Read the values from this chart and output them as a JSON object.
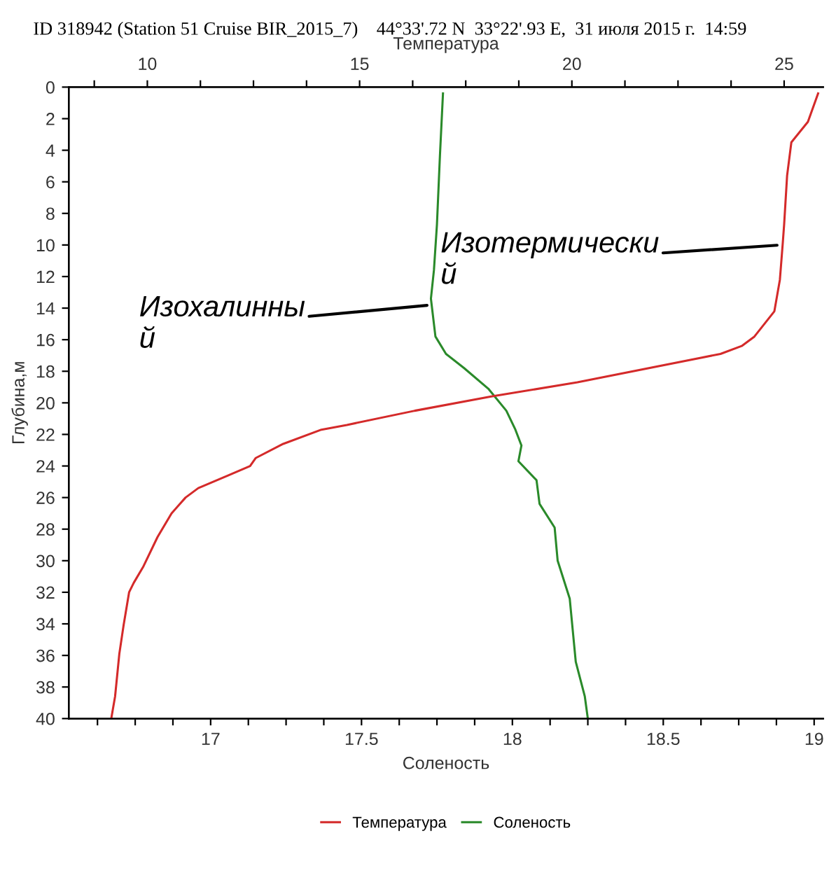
{
  "chart_data": {
    "type": "line",
    "title": "ID 318942 (Station 51 Cruise BIR_2015_7)    44°33'.72 N  33°22'.93 E,  31 июля 2015 г.  14:59",
    "xlabel": "Соленость",
    "x2label": "Температура",
    "ylabel": "Глубина,м",
    "xlim": [
      16.53,
      19.03
    ],
    "xticks": [
      {
        "value": 16.625,
        "label": null
      },
      {
        "value": 16.75,
        "label": null
      },
      {
        "value": 16.875,
        "label": null
      },
      17,
      {
        "value": 17.125,
        "label": null
      },
      {
        "value": 17.25,
        "label": null
      },
      {
        "value": 17.375,
        "label": null
      },
      17.5,
      {
        "value": 17.625,
        "label": null
      },
      {
        "value": 17.75,
        "label": null
      },
      {
        "value": 17.875,
        "label": null
      },
      18,
      {
        "value": 18.125,
        "label": null
      },
      {
        "value": 18.25,
        "label": null
      },
      {
        "value": 18.375,
        "label": null
      },
      18.5,
      {
        "value": 18.625,
        "label": null
      },
      {
        "value": 18.75,
        "label": null
      },
      {
        "value": 18.875,
        "label": null
      },
      19
    ],
    "x2lim": [
      8.15,
      25.92
    ],
    "x2ticks": [
      {
        "value": 8.75,
        "label": null
      },
      10,
      {
        "value": 11.25,
        "label": null
      },
      {
        "value": 12.5,
        "label": null
      },
      {
        "value": 13.75,
        "label": null
      },
      15,
      {
        "value": 16.25,
        "label": null
      },
      {
        "value": 17.5,
        "label": null
      },
      {
        "value": 18.75,
        "label": null
      },
      20,
      {
        "value": 21.25,
        "label": null
      },
      {
        "value": 22.5,
        "label": null
      },
      {
        "value": 23.75,
        "label": null
      },
      25
    ],
    "ylim": [
      40,
      0
    ],
    "yticks": [
      0,
      2,
      4,
      6,
      8,
      10,
      12,
      14,
      16,
      18,
      20,
      22,
      24,
      26,
      28,
      30,
      32,
      34,
      36,
      38,
      40
    ],
    "grid": false,
    "legend": "bottom",
    "series": [
      {
        "name": "Температура",
        "color": "#d42a2a",
        "axis": "x2",
        "x": [
          25.8,
          25.56,
          25.17,
          25.07,
          25.0,
          24.97,
          24.9,
          24.77,
          24.3,
          24.0,
          23.5,
          20.13,
          18.1,
          16.3,
          14.7,
          14.1,
          13.2,
          12.55,
          12.42,
          11.9,
          11.2,
          10.9,
          10.57,
          10.24,
          9.9,
          9.68,
          9.57,
          9.44,
          9.34,
          9.24,
          9.15
        ],
        "values": [
          0.4,
          2.2,
          3.5,
          5.6,
          8.7,
          9.8,
          12.2,
          14.2,
          15.8,
          16.4,
          16.9,
          18.7,
          19.6,
          20.5,
          21.4,
          21.7,
          22.6,
          23.5,
          24.0,
          24.6,
          25.4,
          26.0,
          27.0,
          28.5,
          30.4,
          31.4,
          32.0,
          34.1,
          35.9,
          38.6,
          40.0
        ]
      },
      {
        "name": "Соленость",
        "color": "#2a8a2a",
        "x": [
          17.77,
          17.76,
          17.75,
          17.74,
          17.73,
          17.745,
          17.78,
          17.84,
          17.92,
          17.98,
          18.01,
          18.03,
          18.02,
          18.08,
          18.09,
          18.14,
          18.15,
          18.19,
          18.2,
          18.21,
          18.24,
          18.25
        ],
        "values": [
          0.4,
          4.3,
          8.7,
          11.6,
          13.4,
          15.8,
          16.9,
          17.8,
          19.1,
          20.5,
          21.7,
          22.7,
          23.7,
          24.9,
          26.4,
          27.9,
          30.0,
          32.4,
          34.4,
          36.4,
          38.6,
          40.0
        ]
      }
    ],
    "annotations": [
      {
        "text": "Изохалинны\nй",
        "x": 17.73,
        "y": 13.8
      },
      {
        "text": "Изотермически\nй",
        "x": 18.89,
        "y": 10.0
      }
    ]
  }
}
